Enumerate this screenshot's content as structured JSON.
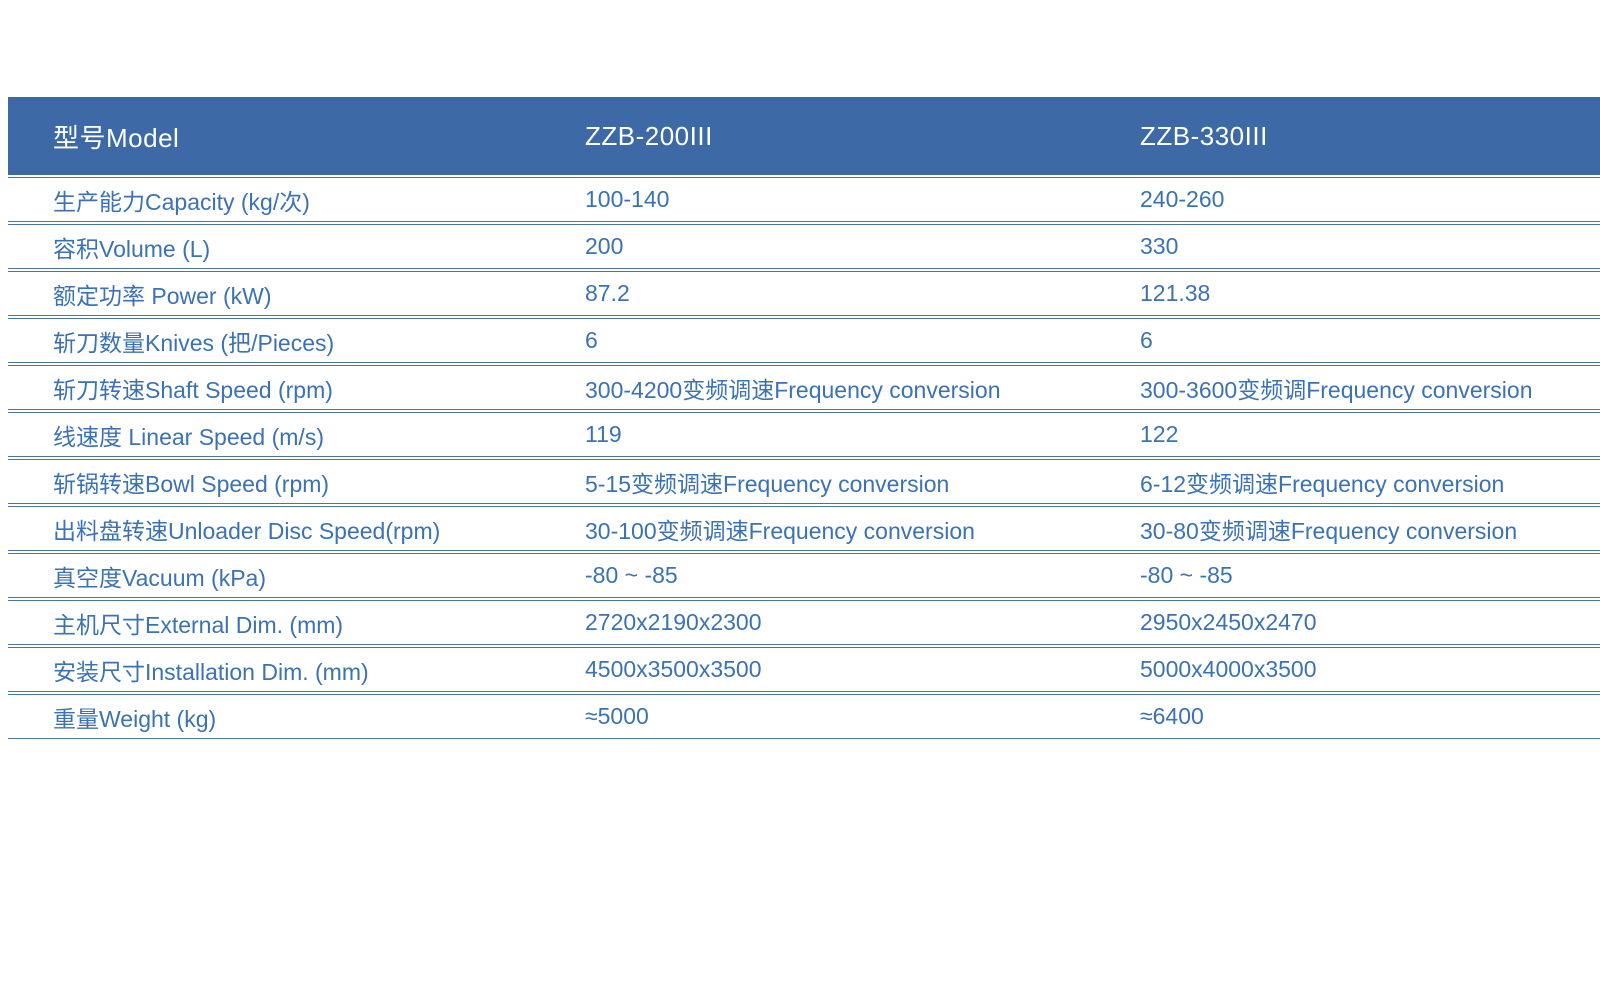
{
  "table": {
    "colors": {
      "header_bg": "#3d69a6",
      "header_text": "#ffffff",
      "body_text": "#3a72b4",
      "divider": "#4a74a4",
      "page_bg": "#ffffff"
    },
    "header": {
      "model_label": "型号Model",
      "model_1": "ZZB-200III",
      "model_2": "ZZB-330III"
    },
    "rows": [
      {
        "label": "生产能力Capacity (kg/次)",
        "v1": "100-140",
        "v2": "240-260"
      },
      {
        "label": "容积Volume (L)",
        "v1": "200",
        "v2": "330"
      },
      {
        "label": "额定功率 Power (kW)",
        "v1": "87.2",
        "v2": "121.38"
      },
      {
        "label": "斩刀数量Knives (把/Pieces)",
        "v1": "6",
        "v2": "6"
      },
      {
        "label": "斩刀转速Shaft Speed (rpm)",
        "v1": "300-4200变频调速Frequency conversion",
        "v2": "300-3600变频调Frequency conversion"
      },
      {
        "label": "线速度 Linear Speed (m/s)",
        "v1": "119",
        "v2": "122"
      },
      {
        "label": "斩锅转速Bowl Speed (rpm)",
        "v1": "5-15变频调速Frequency conversion",
        "v2": "6-12变频调速Frequency conversion"
      },
      {
        "label": "出料盘转速Unloader Disc Speed(rpm)",
        "v1": "30-100变频调速Frequency conversion",
        "v2": "30-80变频调速Frequency conversion"
      },
      {
        "label": "真空度Vacuum (kPa)",
        "v1": "-80 ~ -85",
        "v2": "-80 ~ -85"
      },
      {
        "label": "主机尺寸External Dim. (mm)",
        "v1": "2720x2190x2300",
        "v2": "2950x2450x2470"
      },
      {
        "label": "安装尺寸Installation Dim. (mm)",
        "v1": "4500x3500x3500",
        "v2": "5000x4000x3500"
      },
      {
        "label": "重量Weight (kg)",
        "v1": "≈5000",
        "v2": "≈6400"
      }
    ]
  }
}
